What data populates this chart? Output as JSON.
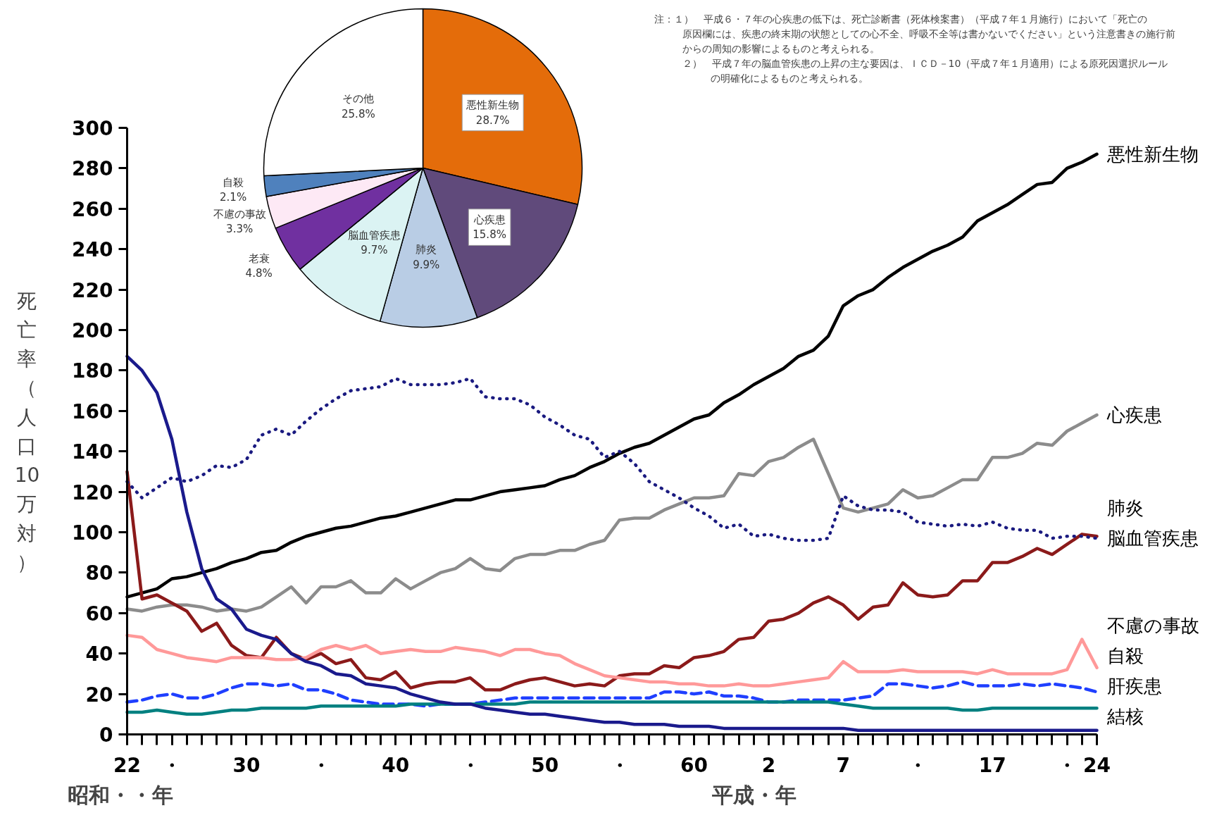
{
  "chart_data": [
    {
      "type": "line",
      "xlabel": "昭和・・年",
      "ylabel": "死亡率（人口10万対）",
      "ylim": [
        0,
        300
      ],
      "yticks": [
        0,
        20,
        40,
        60,
        80,
        100,
        120,
        140,
        160,
        180,
        200,
        220,
        240,
        260,
        280,
        300
      ],
      "categories": [
        "22",
        null,
        null,
        "・",
        null,
        null,
        null,
        null,
        "30",
        null,
        null,
        null,
        null,
        "・",
        null,
        null,
        null,
        null,
        "40",
        null,
        null,
        null,
        null,
        "・",
        null,
        null,
        null,
        null,
        "50",
        null,
        null,
        null,
        null,
        "・",
        null,
        null,
        null,
        null,
        "60",
        null,
        null,
        null,
        null,
        "2",
        null,
        null,
        null,
        null,
        "7",
        null,
        null,
        null,
        null,
        "・",
        null,
        null,
        null,
        null,
        "17",
        null,
        null,
        null,
        null,
        "・",
        null,
        "24"
      ],
      "series": [
        {
          "name": "悪性新生物",
          "color": "#000000",
          "line_style": "solid",
          "values": [
            68,
            70,
            72,
            77,
            78,
            80,
            82,
            85,
            87,
            90,
            91,
            95,
            98,
            100,
            102,
            103,
            105,
            107,
            108,
            110,
            112,
            114,
            116,
            116,
            118,
            120,
            121,
            122,
            123,
            126,
            128,
            132,
            135,
            139,
            142,
            144,
            148,
            152,
            156,
            158,
            164,
            168,
            173,
            177,
            181,
            187,
            190,
            197,
            212,
            217,
            220,
            226,
            231,
            235,
            239,
            242,
            246,
            254,
            258,
            262,
            267,
            272,
            273,
            280,
            283,
            287
          ]
        },
        {
          "name": "心疾患",
          "color": "#8c8c8c",
          "line_style": "solid",
          "values": [
            62,
            61,
            63,
            64,
            64,
            63,
            61,
            62,
            61,
            63,
            68,
            73,
            65,
            73,
            73,
            76,
            70,
            70,
            77,
            72,
            76,
            80,
            82,
            87,
            82,
            81,
            87,
            89,
            89,
            91,
            91,
            94,
            96,
            106,
            107,
            107,
            111,
            114,
            117,
            117,
            118,
            129,
            128,
            135,
            137,
            142,
            146,
            129,
            112,
            110,
            112,
            114,
            121,
            117,
            118,
            122,
            126,
            126,
            137,
            137,
            139,
            144,
            143,
            150,
            154,
            158
          ]
        },
        {
          "name": "肺炎",
          "color": "#8b1a1a",
          "line_style": "solid",
          "values": [
            130,
            67,
            69,
            65,
            61,
            51,
            55,
            44,
            39,
            38,
            48,
            40,
            37,
            40,
            35,
            37,
            28,
            27,
            31,
            23,
            25,
            26,
            26,
            28,
            22,
            22,
            25,
            27,
            28,
            26,
            24,
            25,
            24,
            29,
            30,
            30,
            34,
            33,
            38,
            39,
            41,
            47,
            48,
            56,
            57,
            60,
            65,
            68,
            64,
            57,
            63,
            64,
            75,
            69,
            68,
            69,
            76,
            76,
            85,
            85,
            88,
            92,
            89,
            94,
            99,
            98
          ]
        },
        {
          "name": "脳血管疾患",
          "color": "#1a1a80",
          "line_style": "dotted",
          "values": [
            125,
            117,
            122,
            127,
            125,
            128,
            133,
            132,
            136,
            148,
            151,
            148,
            155,
            161,
            166,
            170,
            171,
            172,
            176,
            173,
            173,
            173,
            174,
            176,
            167,
            166,
            166,
            163,
            157,
            153,
            148,
            146,
            137,
            140,
            134,
            125,
            121,
            117,
            112,
            108,
            102,
            104,
            98,
            99,
            97,
            96,
            96,
            97,
            118,
            113,
            111,
            111,
            110,
            105,
            104,
            103,
            104,
            103,
            105,
            102,
            101,
            101,
            97,
            98,
            98,
            97
          ]
        },
        {
          "name": "不慮の事故",
          "color": "#ff9999",
          "line_style": "solid",
          "values": [
            49,
            48,
            42,
            40,
            38,
            37,
            36,
            38,
            38,
            38,
            37,
            37,
            38,
            42,
            44,
            42,
            44,
            40,
            41,
            42,
            41,
            41,
            43,
            42,
            41,
            39,
            42,
            42,
            40,
            39,
            35,
            32,
            29,
            28,
            27,
            26,
            26,
            25,
            25,
            24,
            24,
            25,
            24,
            24,
            25,
            26,
            27,
            28,
            36,
            31,
            31,
            31,
            32,
            31,
            31,
            31,
            31,
            30,
            32,
            30,
            30,
            30,
            30,
            32,
            47,
            33
          ]
        },
        {
          "name": "自殺",
          "color": "#1f3fff",
          "line_style": "dashed",
          "values": [
            16,
            17,
            19,
            20,
            18,
            18,
            20,
            23,
            25,
            25,
            24,
            25,
            22,
            22,
            20,
            17,
            16,
            15,
            15,
            15,
            14,
            15,
            15,
            15,
            16,
            17,
            18,
            18,
            18,
            18,
            18,
            18,
            18,
            18,
            18,
            18,
            21,
            21,
            20,
            21,
            19,
            19,
            18,
            16,
            16,
            17,
            17,
            17,
            17,
            18,
            19,
            25,
            25,
            24,
            23,
            24,
            26,
            24,
            24,
            24,
            25,
            24,
            25,
            24,
            23,
            21
          ]
        },
        {
          "name": "肝疾患",
          "color": "#008080",
          "line_style": "solid",
          "values": [
            11,
            11,
            12,
            11,
            10,
            10,
            11,
            12,
            12,
            13,
            13,
            13,
            13,
            14,
            14,
            14,
            14,
            14,
            14,
            15,
            15,
            15,
            15,
            15,
            15,
            15,
            15,
            16,
            16,
            16,
            16,
            16,
            16,
            16,
            16,
            16,
            16,
            16,
            16,
            16,
            16,
            16,
            16,
            16,
            16,
            16,
            16,
            16,
            15,
            14,
            13,
            13,
            13,
            13,
            13,
            13,
            12,
            12,
            13,
            13,
            13,
            13,
            13,
            13,
            13,
            13
          ]
        },
        {
          "name": "結核",
          "color": "#1a1a8c",
          "line_style": "solid",
          "values": [
            187,
            180,
            169,
            146,
            110,
            82,
            67,
            62,
            52,
            49,
            47,
            40,
            36,
            34,
            30,
            29,
            25,
            24,
            23,
            20,
            18,
            16,
            15,
            15,
            13,
            12,
            11,
            10,
            10,
            9,
            8,
            7,
            6,
            6,
            5,
            5,
            5,
            4,
            4,
            4,
            3,
            3,
            3,
            3,
            3,
            3,
            3,
            3,
            3,
            2,
            2,
            2,
            2,
            2,
            2,
            2,
            2,
            2,
            2,
            2,
            2,
            2,
            2,
            2,
            2,
            2
          ]
        }
      ],
      "annotations": [
        "注：１）　平成６・７年の心疾患の低下は、死亡診断書（死体検案書）（平成７年１月施行）において「死亡の原因欄には、疾患の終末期の状態としての心不全、呼吸不全等は書かないでください」という注意書きの施行前からの周知の影響によるものと考えられる。",
        "２）　平成７年の脳血管疾患の上昇の主な要因は、ＩＣＤ－10（平成７年１月適用）による原死因選択ルールの明確化によるものと考えられる。",
        "平成・年"
      ]
    },
    {
      "type": "pie",
      "categories": [
        "悪性新生物",
        "心疾患",
        "肺炎",
        "脳血管疾患",
        "老衰",
        "不慮の事故",
        "自殺",
        "その他"
      ],
      "values": [
        28.7,
        15.8,
        9.9,
        9.7,
        4.8,
        3.3,
        2.1,
        25.8
      ],
      "value_labels": [
        "28.7%",
        "15.8%",
        "9.9%",
        "9.7%",
        "4.8%",
        "3.3%",
        "2.1%",
        "25.8%"
      ],
      "colors": [
        "#e46c0a",
        "#604a7b",
        "#b9cde5",
        "#dbf3f3",
        "#7030a0",
        "#fde9f5",
        "#4f81bd",
        "#ffffff"
      ]
    }
  ]
}
